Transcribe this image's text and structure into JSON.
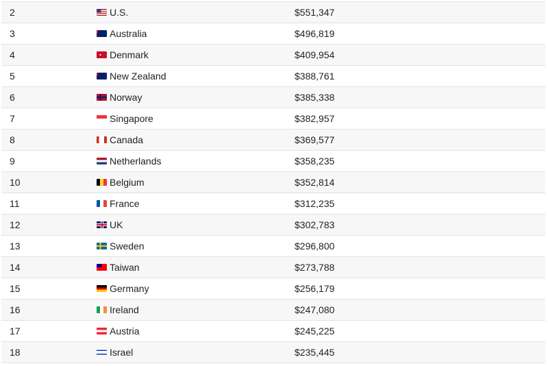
{
  "rows": [
    {
      "rank": "2",
      "country": "U.S.",
      "value": "$551,347",
      "flag": "us-flag-icon",
      "colors": [
        "#b22234",
        "#3c3b6e",
        "#fff"
      ]
    },
    {
      "rank": "3",
      "country": "Australia",
      "value": "$496,819",
      "flag": "australia-flag-icon",
      "colors": [
        "#012169",
        "#e4002b",
        "#fff"
      ]
    },
    {
      "rank": "4",
      "country": "Denmark",
      "value": "$409,954",
      "flag": "denmark-flag-icon",
      "colors": [
        "#c8102e",
        "#fff"
      ]
    },
    {
      "rank": "5",
      "country": "New Zealand",
      "value": "$388,761",
      "flag": "new-zealand-flag-icon",
      "colors": [
        "#012169",
        "#c8102e",
        "#fff"
      ]
    },
    {
      "rank": "6",
      "country": "Norway",
      "value": "$385,338",
      "flag": "norway-flag-icon",
      "colors": [
        "#ba0c2f",
        "#00205b",
        "#fff"
      ]
    },
    {
      "rank": "7",
      "country": "Singapore",
      "value": "$382,957",
      "flag": "singapore-flag-icon",
      "colors": [
        "#ef3340",
        "#fff"
      ]
    },
    {
      "rank": "8",
      "country": "Canada",
      "value": "$369,577",
      "flag": "canada-flag-icon",
      "colors": [
        "#d52b1e",
        "#fff"
      ]
    },
    {
      "rank": "9",
      "country": "Netherlands",
      "value": "$358,235",
      "flag": "netherlands-flag-icon",
      "colors": [
        "#ae1c28",
        "#fff",
        "#21468b"
      ]
    },
    {
      "rank": "10",
      "country": "Belgium",
      "value": "$352,814",
      "flag": "belgium-flag-icon",
      "colors": [
        "#000",
        "#fdda24",
        "#ef3340"
      ]
    },
    {
      "rank": "11",
      "country": "France",
      "value": "$312,235",
      "flag": "france-flag-icon",
      "colors": [
        "#0055a4",
        "#fff",
        "#ef4135"
      ]
    },
    {
      "rank": "12",
      "country": "UK",
      "value": "$302,783",
      "flag": "uk-flag-icon",
      "colors": [
        "#012169",
        "#c8102e",
        "#fff"
      ]
    },
    {
      "rank": "13",
      "country": "Sweden",
      "value": "$296,800",
      "flag": "sweden-flag-icon",
      "colors": [
        "#006aa7",
        "#fecc00"
      ]
    },
    {
      "rank": "14",
      "country": "Taiwan",
      "value": "$273,788",
      "flag": "taiwan-flag-icon",
      "colors": [
        "#fe0000",
        "#000095"
      ]
    },
    {
      "rank": "15",
      "country": "Germany",
      "value": "$256,179",
      "flag": "germany-flag-icon",
      "colors": [
        "#000",
        "#dd0000",
        "#ffce00"
      ]
    },
    {
      "rank": "16",
      "country": "Ireland",
      "value": "$247,080",
      "flag": "ireland-flag-icon",
      "colors": [
        "#169b62",
        "#fff",
        "#ff883e"
      ]
    },
    {
      "rank": "17",
      "country": "Austria",
      "value": "$245,225",
      "flag": "austria-flag-icon",
      "colors": [
        "#ed2939",
        "#fff",
        "#ed2939"
      ]
    },
    {
      "rank": "18",
      "country": "Israel",
      "value": "$235,445",
      "flag": "israel-flag-icon",
      "colors": [
        "#fff",
        "#0038b8"
      ]
    }
  ]
}
